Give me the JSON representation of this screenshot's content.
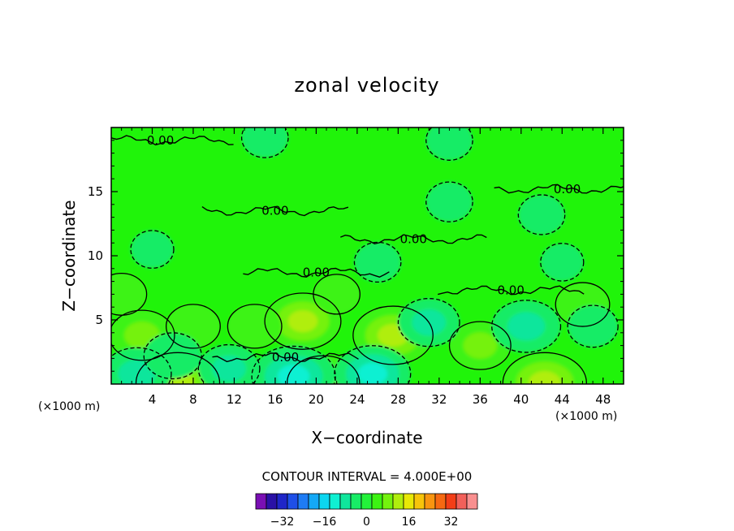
{
  "chart_data": {
    "type": "heatmap",
    "title": "zonal velocity",
    "xlabel": "X−coordinate",
    "ylabel": "Z−coordinate",
    "x_unit": "(×1000 m)",
    "y_unit": "(×1000 m)",
    "xlim": [
      0,
      50
    ],
    "ylim": [
      0,
      20
    ],
    "x_ticks": [
      4,
      8,
      12,
      16,
      20,
      24,
      28,
      32,
      36,
      40,
      44,
      48
    ],
    "x_tick_labels": [
      "4",
      "8",
      "12",
      "16",
      "20",
      "24",
      "28",
      "32",
      "36",
      "40",
      "44",
      "48"
    ],
    "y_ticks": [
      5,
      10,
      15
    ],
    "y_tick_labels": [
      "5",
      "10",
      "15"
    ],
    "contour_interval_text": "CONTOUR INTERVAL = 4.000E+00",
    "contour_labels": [
      {
        "text": "0.00",
        "x": 4.8,
        "z": 19.0
      },
      {
        "text": "0.00",
        "x": 16.0,
        "z": 13.5
      },
      {
        "text": "0.00",
        "x": 29.5,
        "z": 11.3
      },
      {
        "text": "0.00",
        "x": 44.5,
        "z": 15.2
      },
      {
        "text": "0.00",
        "x": 20.0,
        "z": 8.7
      },
      {
        "text": "0.00",
        "x": 39.0,
        "z": 7.3
      },
      {
        "text": "0.00",
        "x": 17.0,
        "z": 2.1
      }
    ],
    "features": [
      {
        "name": "pos",
        "x": 18.7,
        "z": 4.9,
        "value": 10
      },
      {
        "name": "pos",
        "x": 27.5,
        "z": 3.8,
        "value": 11
      },
      {
        "name": "pos",
        "x": 6.5,
        "z": 0.1,
        "value": 12
      },
      {
        "name": "pos",
        "x": 42.3,
        "z": 0.1,
        "value": 12
      },
      {
        "name": "pos",
        "x": 20.7,
        "z": 0.1,
        "value": 9
      },
      {
        "name": "pos",
        "x": 3.0,
        "z": 3.8,
        "value": 7
      },
      {
        "name": "pos",
        "x": 8.0,
        "z": 4.5,
        "value": 4
      },
      {
        "name": "pos",
        "x": 14.0,
        "z": 4.5,
        "value": 4
      },
      {
        "name": "pos",
        "x": 36.0,
        "z": 3.0,
        "value": 6
      },
      {
        "name": "pos",
        "x": 46.0,
        "z": 6.2,
        "value": 4
      },
      {
        "name": "pos",
        "x": 1.0,
        "z": 7.0,
        "value": 3
      },
      {
        "name": "pos",
        "x": 22.0,
        "z": 7.0,
        "value": 2
      },
      {
        "name": "neg",
        "x": 17.8,
        "z": 0.6,
        "value": -12
      },
      {
        "name": "neg",
        "x": 25.5,
        "z": 0.8,
        "value": -10
      },
      {
        "name": "neg",
        "x": 2.5,
        "z": 0.8,
        "value": -8
      },
      {
        "name": "neg",
        "x": 6.0,
        "z": 2.2,
        "value": -5
      },
      {
        "name": "neg",
        "x": 11.5,
        "z": 1.2,
        "value": -6
      },
      {
        "name": "neg",
        "x": 31.0,
        "z": 4.8,
        "value": -6
      },
      {
        "name": "neg",
        "x": 40.5,
        "z": 4.5,
        "value": -8
      },
      {
        "name": "neg",
        "x": 47.0,
        "z": 4.5,
        "value": -3
      },
      {
        "name": "neg",
        "x": 15.0,
        "z": 19.2,
        "value": -2
      },
      {
        "name": "neg",
        "x": 33.0,
        "z": 19.0,
        "value": -2
      },
      {
        "name": "neg",
        "x": 33.0,
        "z": 14.2,
        "value": -2
      },
      {
        "name": "neg",
        "x": 42.0,
        "z": 13.2,
        "value": -2
      },
      {
        "name": "neg",
        "x": 26.0,
        "z": 9.5,
        "value": -2
      },
      {
        "name": "neg",
        "x": 4.0,
        "z": 10.5,
        "value": -1
      },
      {
        "name": "neg",
        "x": 44.0,
        "z": 9.5,
        "value": -1
      }
    ],
    "colorbar": {
      "tick_values": [
        -32,
        -16,
        0,
        16,
        32
      ],
      "tick_labels": [
        "−32",
        "−16",
        "0",
        "16",
        "32"
      ],
      "colors": [
        "#7a0fb4",
        "#2a11a6",
        "#1f26c8",
        "#1e4fe8",
        "#1e7cf5",
        "#14a8f6",
        "#0cd6f0",
        "#0ff0d2",
        "#10e69c",
        "#17ec66",
        "#23f23a",
        "#3cf312",
        "#74f20e",
        "#b0ee0d",
        "#e8e806",
        "#f7c40a",
        "#f89510",
        "#f66912",
        "#f33e17",
        "#f2605a",
        "#f98f8f"
      ]
    }
  }
}
